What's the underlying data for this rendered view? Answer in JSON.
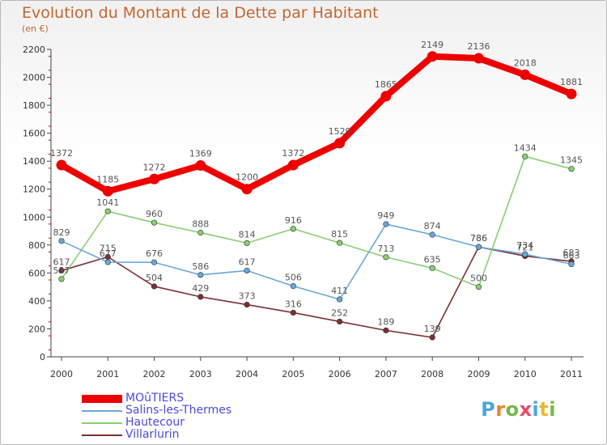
{
  "chart": {
    "title": "Evolution du Montant de la Dette par Habitant",
    "subtitle": "(en €)"
  },
  "logo": {
    "text": "Proxiti",
    "letter_colors": [
      "#4aa8d8",
      "#e8862e",
      "#7ab648",
      "#e84a6a",
      "#4aa8d8",
      "#e8b82e",
      "#7ab648"
    ]
  },
  "chart_data": {
    "type": "line",
    "title": "Evolution du Montant de la Dette par Habitant",
    "subtitle": "(en €)",
    "x": [
      "2000",
      "2001",
      "2002",
      "2003",
      "2004",
      "2005",
      "2006",
      "2007",
      "2008",
      "2009",
      "2010",
      "2011"
    ],
    "ylim": [
      0,
      2200
    ],
    "yticks": [
      0,
      200,
      400,
      600,
      800,
      1000,
      1200,
      1400,
      1600,
      1800,
      2000,
      2200
    ],
    "grid": false,
    "legend_position": "bottom-left",
    "series": [
      {
        "name": "MOûTIERS",
        "color": "#ee0000",
        "values": [
          1372,
          1185,
          1272,
          1369,
          1200,
          1372,
          1529,
          1865,
          2149,
          2136,
          2018,
          1881
        ]
      },
      {
        "name": "Salins-les-Thermes",
        "color": "#6aa8d8",
        "values": [
          829,
          677,
          676,
          586,
          617,
          506,
          411,
          949,
          874,
          786,
          734,
          663
        ]
      },
      {
        "name": "Hautecour",
        "color": "#88d070",
        "values": [
          557,
          1041,
          960,
          888,
          814,
          916,
          815,
          713,
          635,
          500,
          1434,
          1345
        ]
      },
      {
        "name": "Villarlurin",
        "color": "#7a3030",
        "values": [
          617,
          715,
          504,
          429,
          373,
          316,
          252,
          189,
          139,
          786,
          721,
          683
        ]
      }
    ]
  }
}
